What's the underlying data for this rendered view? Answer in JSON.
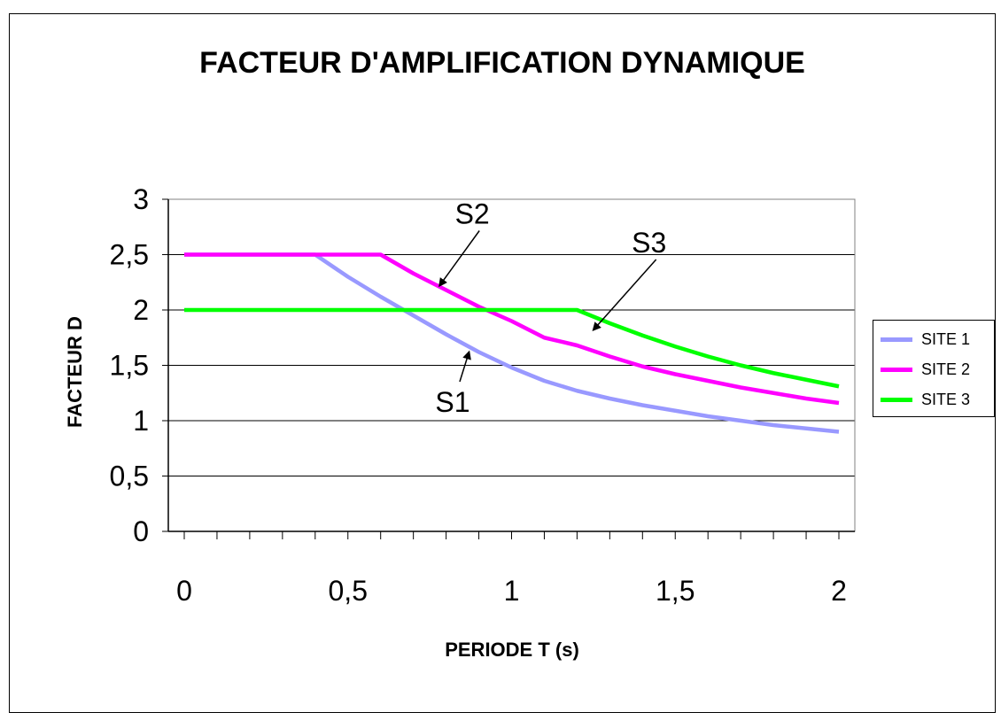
{
  "chart_data": {
    "type": "line",
    "title": "FACTEUR D'AMPLIFICATION DYNAMIQUE",
    "xlabel": "PERIODE  T (s)",
    "ylabel": "FACTEUR  D",
    "xlim": [
      0,
      2
    ],
    "ylim": [
      0,
      3
    ],
    "x_ticks": [
      "0",
      "0,5",
      "1",
      "1,5",
      "2"
    ],
    "x_tick_values": [
      0,
      0.5,
      1,
      1.5,
      2
    ],
    "y_ticks": [
      "0",
      "0,5",
      "1",
      "1,5",
      "2",
      "2,5",
      "3"
    ],
    "y_tick_values": [
      0,
      0.5,
      1,
      1.5,
      2,
      2.5,
      3
    ],
    "grid": "horizontal",
    "legend_position": "right",
    "series": [
      {
        "name": "SITE 1",
        "color": "#9999ff",
        "x": [
          0,
          0.1,
          0.2,
          0.3,
          0.4,
          0.5,
          0.6,
          0.7,
          0.8,
          0.9,
          1.0,
          1.1,
          1.2,
          1.3,
          1.4,
          1.5,
          1.6,
          1.7,
          1.8,
          1.9,
          2.0
        ],
        "y": [
          2.5,
          2.5,
          2.5,
          2.5,
          2.5,
          2.3,
          2.12,
          1.95,
          1.78,
          1.62,
          1.48,
          1.36,
          1.27,
          1.2,
          1.14,
          1.09,
          1.04,
          1.0,
          0.96,
          0.93,
          0.9
        ]
      },
      {
        "name": "SITE 2",
        "color": "#ff00ff",
        "x": [
          0,
          0.1,
          0.2,
          0.3,
          0.4,
          0.5,
          0.6,
          0.7,
          0.8,
          0.9,
          1.0,
          1.1,
          1.2,
          1.3,
          1.4,
          1.5,
          1.6,
          1.7,
          1.8,
          1.9,
          2.0
        ],
        "y": [
          2.5,
          2.5,
          2.5,
          2.5,
          2.5,
          2.5,
          2.5,
          2.33,
          2.18,
          2.03,
          1.9,
          1.75,
          1.68,
          1.58,
          1.49,
          1.42,
          1.36,
          1.3,
          1.25,
          1.2,
          1.16
        ]
      },
      {
        "name": "SITE 3",
        "color": "#00ff00",
        "x": [
          0,
          0.1,
          0.2,
          0.3,
          0.4,
          0.5,
          0.6,
          0.7,
          0.8,
          0.9,
          1.0,
          1.1,
          1.2,
          1.3,
          1.4,
          1.5,
          1.6,
          1.7,
          1.8,
          1.9,
          2.0
        ],
        "y": [
          2.0,
          2.0,
          2.0,
          2.0,
          2.0,
          2.0,
          2.0,
          2.0,
          2.0,
          2.0,
          2.0,
          2.0,
          2.0,
          1.88,
          1.77,
          1.67,
          1.58,
          1.5,
          1.43,
          1.37,
          1.31
        ]
      }
    ],
    "annotations": [
      {
        "text": "S1",
        "x": 0.82,
        "y": 1.08,
        "arrow_to_x": 0.87,
        "arrow_to_y": 1.62
      },
      {
        "text": "S2",
        "x": 0.88,
        "y": 2.78,
        "arrow_to_x": 0.78,
        "arrow_to_y": 2.22
      },
      {
        "text": "S3",
        "x": 1.42,
        "y": 2.52,
        "arrow_to_x": 1.25,
        "arrow_to_y": 1.82
      }
    ]
  }
}
